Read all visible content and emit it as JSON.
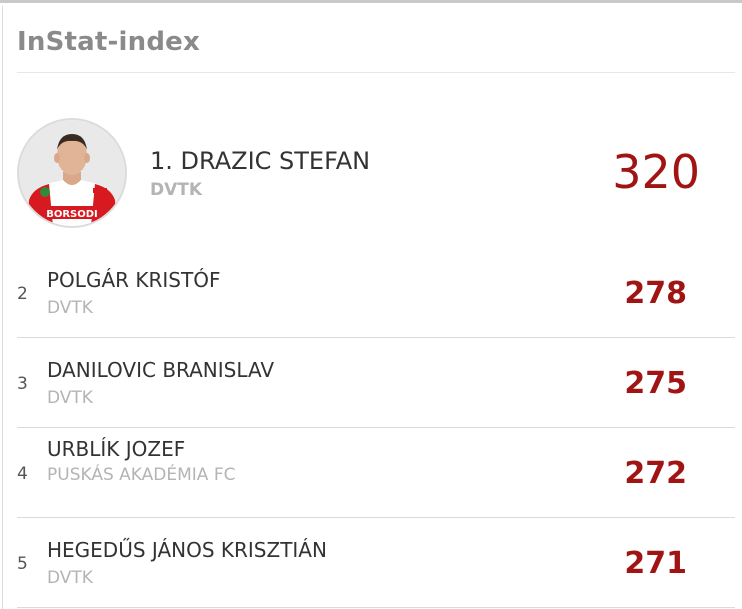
{
  "widget": {
    "title": "InStat-index"
  },
  "leader": {
    "rank_name": "1. DRAZIC STEFAN",
    "team": "DVTK",
    "score": "320",
    "photo_shirt_text": "BORSODI"
  },
  "rows": [
    {
      "rank": "2",
      "name": "POLGÁR KRISTÓF",
      "team": "DVTK",
      "score": "278"
    },
    {
      "rank": "3",
      "name": "DANILOVIC BRANISLAV",
      "team": "DVTK",
      "score": "275"
    },
    {
      "rank": "4",
      "name": "URBLÍK JOZEF",
      "team": "PUSKÁS AKADÉMIA FC",
      "score": "272"
    },
    {
      "rank": "5",
      "name": "HEGEDŰS JÁNOS KRISZTIÁN",
      "team": "DVTK",
      "score": "271"
    }
  ],
  "colors": {
    "score_red": "#a01414",
    "title_gray": "#8a8a8a",
    "team_gray": "#b4b4b4"
  }
}
